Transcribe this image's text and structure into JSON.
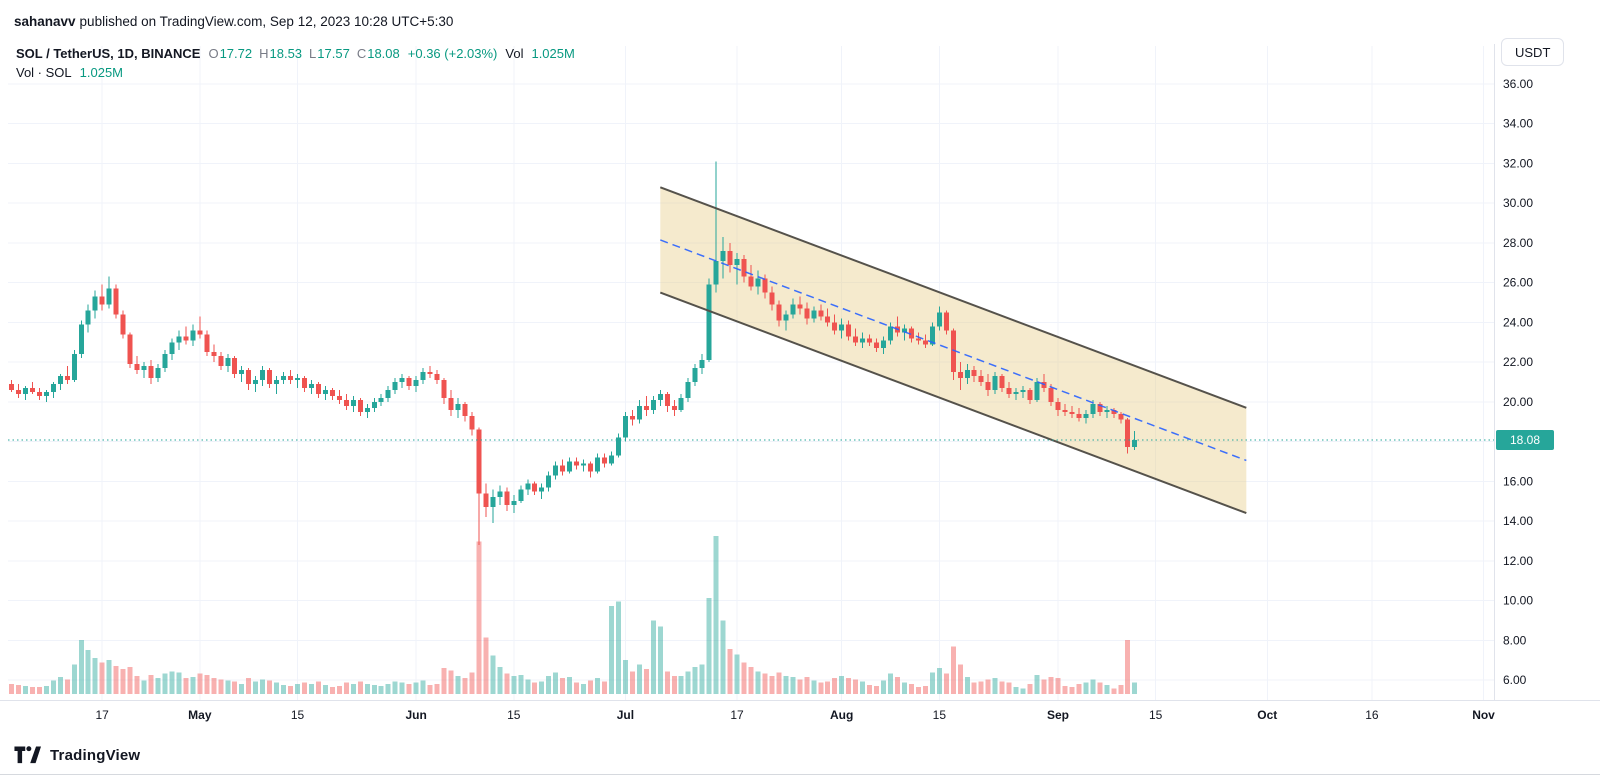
{
  "page": {
    "published_bar": {
      "author": "sahanavv",
      "text": "published on TradingView.com, Sep 12, 2023 10:28 UTC+5:30"
    },
    "footer": {
      "brand": "TradingView"
    }
  },
  "toolbar": {
    "currency_button": "USDT"
  },
  "legend": {
    "symbol_title": "SOL / TetherUS, 1D, BINANCE",
    "ohlc": [
      {
        "label": "O",
        "value": "17.72"
      },
      {
        "label": "H",
        "value": "18.53"
      },
      {
        "label": "L",
        "value": "17.57"
      },
      {
        "label": "C",
        "value": "18.08"
      }
    ],
    "change": "+0.36 (+2.03%)",
    "vol_label": "Vol",
    "vol_value": "1.025M",
    "row2_label": "Vol · SOL",
    "row2_value": "1.025M"
  },
  "colors": {
    "up": "#26a69a",
    "down": "#ef5350",
    "vol_up": "rgba(38,166,154,0.45)",
    "vol_down": "rgba(239,83,80,0.45)",
    "grid": "#f0f3fa",
    "axis_text": "#131722",
    "axis_border": "#e0e3eb",
    "legend_value": "#089981",
    "channel_fill": "rgba(230,205,135,0.42)",
    "channel_border": "#55524b",
    "channel_mid": "#2962ff",
    "price_line": "#26a69a",
    "badge_bg": "#26a69a",
    "badge_text": "#ffffff"
  },
  "chart_data": {
    "type": "candlestick",
    "title": "SOL / TetherUS, 1D, BINANCE",
    "start_date": "2023-04-04",
    "end_date": "2023-09-12",
    "days_total": 213,
    "price_scale": {
      "min": 6,
      "max": 36,
      "step": 2
    },
    "price_axis_labels": [
      "36.00",
      "34.00",
      "32.00",
      "30.00",
      "28.00",
      "26.00",
      "24.00",
      "22.00",
      "20.00",
      "16.00",
      "14.00",
      "12.00",
      "10.00",
      "8.00",
      "6.00"
    ],
    "current_price": 18.08,
    "time_ticks": [
      {
        "i": 13,
        "label": "17",
        "bold": false
      },
      {
        "i": 27,
        "label": "May",
        "bold": true
      },
      {
        "i": 41,
        "label": "15",
        "bold": false
      },
      {
        "i": 58,
        "label": "Jun",
        "bold": true
      },
      {
        "i": 72,
        "label": "15",
        "bold": false
      },
      {
        "i": 88,
        "label": "Jul",
        "bold": true
      },
      {
        "i": 104,
        "label": "17",
        "bold": false
      },
      {
        "i": 119,
        "label": "Aug",
        "bold": true
      },
      {
        "i": 133,
        "label": "15",
        "bold": false
      },
      {
        "i": 150,
        "label": "Sep",
        "bold": true
      },
      {
        "i": 164,
        "label": "15",
        "bold": false
      },
      {
        "i": 180,
        "label": "Oct",
        "bold": true
      },
      {
        "i": 195,
        "label": "16",
        "bold": false
      },
      {
        "i": 211,
        "label": "Nov",
        "bold": true
      }
    ],
    "channel": {
      "i1": 93,
      "i2": 177,
      "upper": [
        30.8,
        19.7
      ],
      "lower": [
        25.5,
        14.4
      ]
    },
    "volume_unit": "M",
    "candles_format": "[open, high, low, close, volume_millions]",
    "candles": [
      [
        20.9,
        21.1,
        20.5,
        20.6,
        0.9
      ],
      [
        20.6,
        20.9,
        20.2,
        20.4,
        0.8
      ],
      [
        20.4,
        20.8,
        20.1,
        20.7,
        0.7
      ],
      [
        20.7,
        21.0,
        20.4,
        20.5,
        0.6
      ],
      [
        20.5,
        20.7,
        20.1,
        20.3,
        0.6
      ],
      [
        20.3,
        20.6,
        20.0,
        20.5,
        0.7
      ],
      [
        20.5,
        21.0,
        20.2,
        20.9,
        1.2
      ],
      [
        20.9,
        21.4,
        20.6,
        21.3,
        1.5
      ],
      [
        21.3,
        21.8,
        20.9,
        21.1,
        1.3
      ],
      [
        21.1,
        22.6,
        21.0,
        22.4,
        2.6
      ],
      [
        22.4,
        24.1,
        22.2,
        23.9,
        4.8
      ],
      [
        23.9,
        24.9,
        23.5,
        24.6,
        3.9
      ],
      [
        24.6,
        25.6,
        24.2,
        25.3,
        3.2
      ],
      [
        25.3,
        25.9,
        24.6,
        24.9,
        2.8
      ],
      [
        24.9,
        26.3,
        24.7,
        25.7,
        3.0
      ],
      [
        25.7,
        25.9,
        24.2,
        24.4,
        2.5
      ],
      [
        24.4,
        24.6,
        23.2,
        23.4,
        2.2
      ],
      [
        23.4,
        23.5,
        21.7,
        21.9,
        2.4
      ],
      [
        21.9,
        22.3,
        21.4,
        21.6,
        1.6
      ],
      [
        21.6,
        22.0,
        21.2,
        21.8,
        1.2
      ],
      [
        21.8,
        22.1,
        20.9,
        21.2,
        1.7
      ],
      [
        21.2,
        21.9,
        21.0,
        21.7,
        1.4
      ],
      [
        21.7,
        22.6,
        21.5,
        22.4,
        1.8
      ],
      [
        22.4,
        23.2,
        22.1,
        23.0,
        2.0
      ],
      [
        23.0,
        23.6,
        22.6,
        23.3,
        1.9
      ],
      [
        23.3,
        23.8,
        22.9,
        23.1,
        1.4
      ],
      [
        23.1,
        23.9,
        22.8,
        23.6,
        1.5
      ],
      [
        23.6,
        24.3,
        23.2,
        23.4,
        1.8
      ],
      [
        23.4,
        23.6,
        22.3,
        22.5,
        1.7
      ],
      [
        22.5,
        22.9,
        22.0,
        22.3,
        1.4
      ],
      [
        22.3,
        22.5,
        21.6,
        21.8,
        1.3
      ],
      [
        21.8,
        22.4,
        21.5,
        22.2,
        1.2
      ],
      [
        22.2,
        22.3,
        21.2,
        21.4,
        1.1
      ],
      [
        21.4,
        21.8,
        21.0,
        21.6,
        0.9
      ],
      [
        21.6,
        21.7,
        20.6,
        20.9,
        1.4
      ],
      [
        20.9,
        21.3,
        20.5,
        21.1,
        1.1
      ],
      [
        21.1,
        21.8,
        20.8,
        21.6,
        1.3
      ],
      [
        21.6,
        21.7,
        20.7,
        20.9,
        1.2
      ],
      [
        20.9,
        21.3,
        20.4,
        21.1,
        1.0
      ],
      [
        21.1,
        21.5,
        20.9,
        21.3,
        0.8
      ],
      [
        21.3,
        21.6,
        20.9,
        21.1,
        0.7
      ],
      [
        21.1,
        21.4,
        20.7,
        21.2,
        0.9
      ],
      [
        21.2,
        21.3,
        20.5,
        20.7,
        1.0
      ],
      [
        20.7,
        21.1,
        20.4,
        20.9,
        0.9
      ],
      [
        20.9,
        21.0,
        20.2,
        20.4,
        1.1
      ],
      [
        20.4,
        20.8,
        20.1,
        20.6,
        0.8
      ],
      [
        20.6,
        20.7,
        20.1,
        20.3,
        0.6
      ],
      [
        20.3,
        20.6,
        19.9,
        20.1,
        0.7
      ],
      [
        20.1,
        20.4,
        19.6,
        19.8,
        1.0
      ],
      [
        19.8,
        20.3,
        19.5,
        20.1,
        0.9
      ],
      [
        20.1,
        20.2,
        19.3,
        19.5,
        1.1
      ],
      [
        19.5,
        19.9,
        19.2,
        19.7,
        0.9
      ],
      [
        19.7,
        20.2,
        19.5,
        20.0,
        0.8
      ],
      [
        20.0,
        20.4,
        19.8,
        20.2,
        0.7
      ],
      [
        20.2,
        20.8,
        20.0,
        20.6,
        0.9
      ],
      [
        20.6,
        21.2,
        20.4,
        21.0,
        1.1
      ],
      [
        21.0,
        21.4,
        20.7,
        21.2,
        1.0
      ],
      [
        21.2,
        21.3,
        20.6,
        20.8,
        0.9
      ],
      [
        20.8,
        21.3,
        20.5,
        21.1,
        1.0
      ],
      [
        21.1,
        21.7,
        20.9,
        21.5,
        1.2
      ],
      [
        21.5,
        21.8,
        21.2,
        21.4,
        0.8
      ],
      [
        21.4,
        21.6,
        20.9,
        21.1,
        0.9
      ],
      [
        21.1,
        21.2,
        19.9,
        20.2,
        2.3
      ],
      [
        20.2,
        20.6,
        19.3,
        19.6,
        2.1
      ],
      [
        19.6,
        20.2,
        19.2,
        19.9,
        1.6
      ],
      [
        19.9,
        20.0,
        19.0,
        19.3,
        1.4
      ],
      [
        19.3,
        19.5,
        18.3,
        18.6,
        1.9
      ],
      [
        18.6,
        18.7,
        12.8,
        15.4,
        13.5
      ],
      [
        15.4,
        15.9,
        14.2,
        14.7,
        5.0
      ],
      [
        14.7,
        15.6,
        13.9,
        15.2,
        3.4
      ],
      [
        15.2,
        15.8,
        14.8,
        15.5,
        2.4
      ],
      [
        15.5,
        15.7,
        14.5,
        14.8,
        1.8
      ],
      [
        14.8,
        15.3,
        14.4,
        15.0,
        1.6
      ],
      [
        15.0,
        15.8,
        14.9,
        15.6,
        1.7
      ],
      [
        15.6,
        16.1,
        15.3,
        15.9,
        1.3
      ],
      [
        15.9,
        16.0,
        15.3,
        15.5,
        1.0
      ],
      [
        15.5,
        15.9,
        15.1,
        15.7,
        1.1
      ],
      [
        15.7,
        16.5,
        15.5,
        16.3,
        1.6
      ],
      [
        16.3,
        17.0,
        16.1,
        16.8,
        1.9
      ],
      [
        16.8,
        17.1,
        16.3,
        16.5,
        1.4
      ],
      [
        16.5,
        17.2,
        16.4,
        17.0,
        1.5
      ],
      [
        17.0,
        17.2,
        16.6,
        16.8,
        1.0
      ],
      [
        16.8,
        17.1,
        16.5,
        16.9,
        0.9
      ],
      [
        16.9,
        17.0,
        16.2,
        16.5,
        1.2
      ],
      [
        16.5,
        17.4,
        16.4,
        17.2,
        1.4
      ],
      [
        17.2,
        17.4,
        16.7,
        16.9,
        1.1
      ],
      [
        16.9,
        17.5,
        16.8,
        17.3,
        7.8
      ],
      [
        17.3,
        18.4,
        17.2,
        18.2,
        8.2
      ],
      [
        18.2,
        19.5,
        18.0,
        19.3,
        3.0
      ],
      [
        19.3,
        19.6,
        18.8,
        19.1,
        2.0
      ],
      [
        19.1,
        20.1,
        18.9,
        19.8,
        2.6
      ],
      [
        19.8,
        20.3,
        19.3,
        19.6,
        2.2
      ],
      [
        19.6,
        20.3,
        19.4,
        20.1,
        6.5
      ],
      [
        20.1,
        20.6,
        19.8,
        20.4,
        6.0
      ],
      [
        20.4,
        20.5,
        19.5,
        19.8,
        2.0
      ],
      [
        19.8,
        20.1,
        19.3,
        19.6,
        1.6
      ],
      [
        19.6,
        20.4,
        19.5,
        20.2,
        1.6
      ],
      [
        20.2,
        21.2,
        20.0,
        21.0,
        2.0
      ],
      [
        21.0,
        21.9,
        20.8,
        21.7,
        2.4
      ],
      [
        21.7,
        22.4,
        21.4,
        22.1,
        2.6
      ],
      [
        22.1,
        26.2,
        22.0,
        25.9,
        8.5
      ],
      [
        25.9,
        32.1,
        25.5,
        27.1,
        14.0
      ],
      [
        27.1,
        28.3,
        26.2,
        27.6,
        6.5
      ],
      [
        27.6,
        28.0,
        26.5,
        26.9,
        4.0
      ],
      [
        26.9,
        27.5,
        25.9,
        27.2,
        3.5
      ],
      [
        27.2,
        27.4,
        26.0,
        26.3,
        2.8
      ],
      [
        26.3,
        26.9,
        25.6,
        25.8,
        2.4
      ],
      [
        25.8,
        26.6,
        25.4,
        26.2,
        2.0
      ],
      [
        26.2,
        26.4,
        25.2,
        25.5,
        1.8
      ],
      [
        25.5,
        25.8,
        24.6,
        24.9,
        1.6
      ],
      [
        24.9,
        25.1,
        23.8,
        24.1,
        1.9
      ],
      [
        24.1,
        24.6,
        23.6,
        24.4,
        1.6
      ],
      [
        24.4,
        25.2,
        24.2,
        24.9,
        1.5
      ],
      [
        24.9,
        25.3,
        24.4,
        24.7,
        1.3
      ],
      [
        24.7,
        25.0,
        23.9,
        24.2,
        1.5
      ],
      [
        24.2,
        24.8,
        24.0,
        24.6,
        1.2
      ],
      [
        24.6,
        24.9,
        24.1,
        24.3,
        1.0
      ],
      [
        24.3,
        24.7,
        23.8,
        24.0,
        1.1
      ],
      [
        24.0,
        24.4,
        23.4,
        23.6,
        1.4
      ],
      [
        23.6,
        24.2,
        23.2,
        23.9,
        1.6
      ],
      [
        23.9,
        24.1,
        23.1,
        23.3,
        1.4
      ],
      [
        23.3,
        23.7,
        22.8,
        23.0,
        1.3
      ],
      [
        23.0,
        23.5,
        22.7,
        23.2,
        1.1
      ],
      [
        23.2,
        23.4,
        22.8,
        23.0,
        0.8
      ],
      [
        23.0,
        23.2,
        22.5,
        22.7,
        0.7
      ],
      [
        22.7,
        23.3,
        22.4,
        23.1,
        1.2
      ],
      [
        23.1,
        24.0,
        22.9,
        23.8,
        1.8
      ],
      [
        23.8,
        24.3,
        23.3,
        23.5,
        1.5
      ],
      [
        23.5,
        23.9,
        23.1,
        23.7,
        1.0
      ],
      [
        23.7,
        23.8,
        23.0,
        23.2,
        0.9
      ],
      [
        23.2,
        23.5,
        22.9,
        23.1,
        0.6
      ],
      [
        23.1,
        23.4,
        22.7,
        22.9,
        0.7
      ],
      [
        22.9,
        24.0,
        22.8,
        23.8,
        1.9
      ],
      [
        23.8,
        24.8,
        23.6,
        24.5,
        2.3
      ],
      [
        24.5,
        24.6,
        23.4,
        23.6,
        1.8
      ],
      [
        23.6,
        23.7,
        21.1,
        21.5,
        4.2
      ],
      [
        21.5,
        22.0,
        20.6,
        21.2,
        2.6
      ],
      [
        21.2,
        21.9,
        20.9,
        21.6,
        1.5
      ],
      [
        21.6,
        21.8,
        21.0,
        21.3,
        1.0
      ],
      [
        21.3,
        21.6,
        20.8,
        21.0,
        1.1
      ],
      [
        21.0,
        21.4,
        20.3,
        20.6,
        1.3
      ],
      [
        20.6,
        21.5,
        20.4,
        21.3,
        1.4
      ],
      [
        21.3,
        21.4,
        20.5,
        20.7,
        1.1
      ],
      [
        20.7,
        21.0,
        20.2,
        20.4,
        1.0
      ],
      [
        20.4,
        20.7,
        20.1,
        20.5,
        0.6
      ],
      [
        20.5,
        20.8,
        20.2,
        20.6,
        0.5
      ],
      [
        20.6,
        20.7,
        19.9,
        20.1,
        0.9
      ],
      [
        20.1,
        21.2,
        20.0,
        21.0,
        1.7
      ],
      [
        21.0,
        21.4,
        20.5,
        20.7,
        1.3
      ],
      [
        20.7,
        20.9,
        19.8,
        20.0,
        1.5
      ],
      [
        20.0,
        20.2,
        19.3,
        19.6,
        1.4
      ],
      [
        19.6,
        19.9,
        19.3,
        19.5,
        0.7
      ],
      [
        19.5,
        19.8,
        19.2,
        19.4,
        0.6
      ],
      [
        19.4,
        19.7,
        19.0,
        19.2,
        0.9
      ],
      [
        19.2,
        19.6,
        18.9,
        19.4,
        1.0
      ],
      [
        19.4,
        20.1,
        19.2,
        19.9,
        1.3
      ],
      [
        19.9,
        20.0,
        19.3,
        19.5,
        1.0
      ],
      [
        19.5,
        19.8,
        19.2,
        19.6,
        0.8
      ],
      [
        19.6,
        19.7,
        19.2,
        19.4,
        0.5
      ],
      [
        19.4,
        19.5,
        18.9,
        19.1,
        0.8
      ],
      [
        19.1,
        19.2,
        17.4,
        17.72,
        4.8
      ],
      [
        17.72,
        18.53,
        17.57,
        18.08,
        1.025
      ]
    ]
  }
}
